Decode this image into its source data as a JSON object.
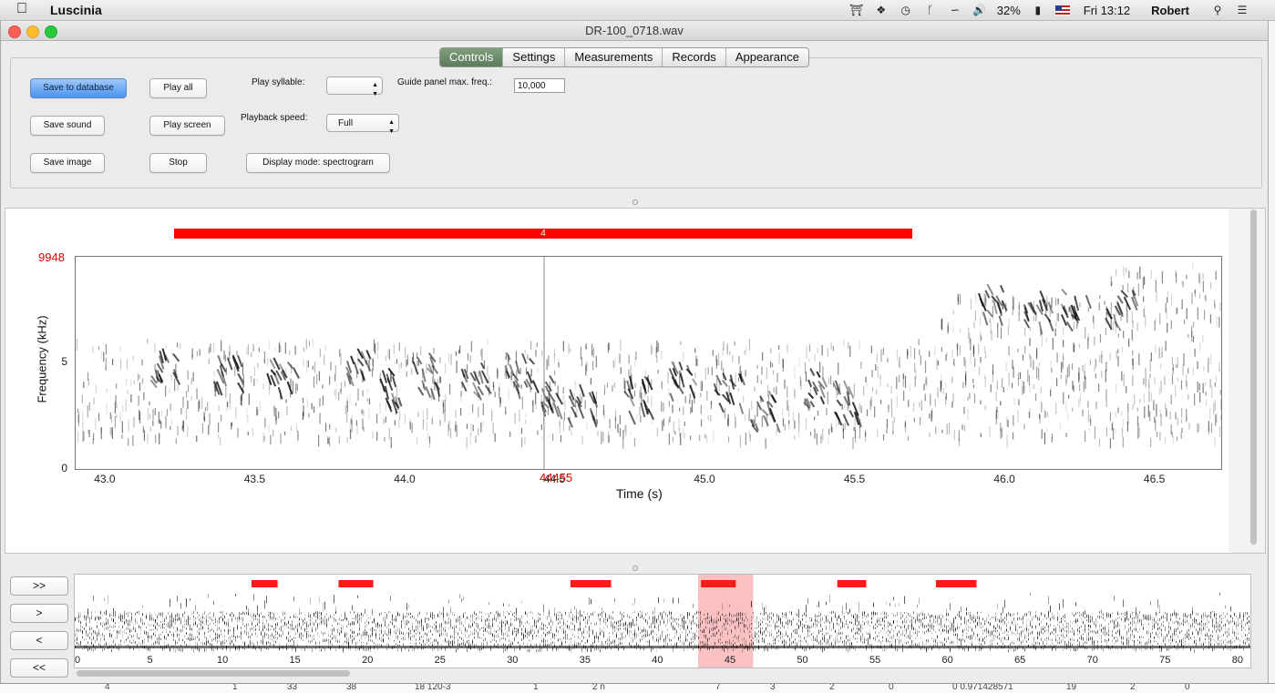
{
  "menubar": {
    "app_name": "Luscinia",
    "battery": "32%",
    "clock": "Fri 13:12",
    "user": "Robert",
    "icons": [
      "apple-icon",
      "institution-icon",
      "dropbox-icon",
      "time-machine-icon",
      "bluetooth-icon",
      "wifi-icon",
      "volume-icon",
      "battery-icon",
      "flag-icon"
    ]
  },
  "window": {
    "title": "DR-100_0718.wav"
  },
  "tabs": [
    {
      "label": "Controls",
      "active": true
    },
    {
      "label": "Settings",
      "active": false
    },
    {
      "label": "Measurements",
      "active": false
    },
    {
      "label": "Records",
      "active": false
    },
    {
      "label": "Appearance",
      "active": false
    }
  ],
  "controls": {
    "save_db": "Save to database",
    "save_sound": "Save sound",
    "save_image": "Save image",
    "play_all": "Play all",
    "play_screen": "Play screen",
    "stop": "Stop",
    "play_syllable_label": "Play syllable:",
    "play_syllable_value": "",
    "playback_speed_label": "Playback speed:",
    "playback_speed_value": "Full",
    "display_mode": "Display mode: spectrogram",
    "guide_label": "Guide panel max. freq.:",
    "guide_value": "10,000"
  },
  "spectrogram": {
    "syllable_number": "4",
    "max_freq_label": "9948",
    "cursor_label": "44455",
    "ylabel": "Frequency (kHz)",
    "xlabel": "Time (s)",
    "yticks": [
      "5",
      "0"
    ],
    "xticks": [
      "43.0",
      "43.5",
      "44.0",
      "44.5",
      "45.0",
      "45.5",
      "46.0",
      "46.5"
    ]
  },
  "navigator": {
    "buttons": [
      ">>",
      ">",
      "<",
      "<<"
    ],
    "xticks": [
      "0",
      "5",
      "10",
      "15",
      "20",
      "25",
      "30",
      "35",
      "40",
      "45",
      "50",
      "55",
      "60",
      "65",
      "70",
      "75",
      "80"
    ],
    "syllable_marks_s": [
      [
        12.0,
        13.8
      ],
      [
        18.0,
        20.4
      ],
      [
        34.0,
        36.8
      ],
      [
        43.0,
        45.4
      ],
      [
        52.4,
        54.4
      ],
      [
        59.2,
        62.0
      ]
    ],
    "view_window_s": [
      42.8,
      46.6
    ]
  },
  "bg_table": [
    "4",
    "1",
    "33",
    "38",
    "18 120-3",
    "1",
    "2 n",
    "7",
    "3",
    "2",
    "0",
    "0 0.971428571",
    "19",
    "2",
    "0"
  ]
}
